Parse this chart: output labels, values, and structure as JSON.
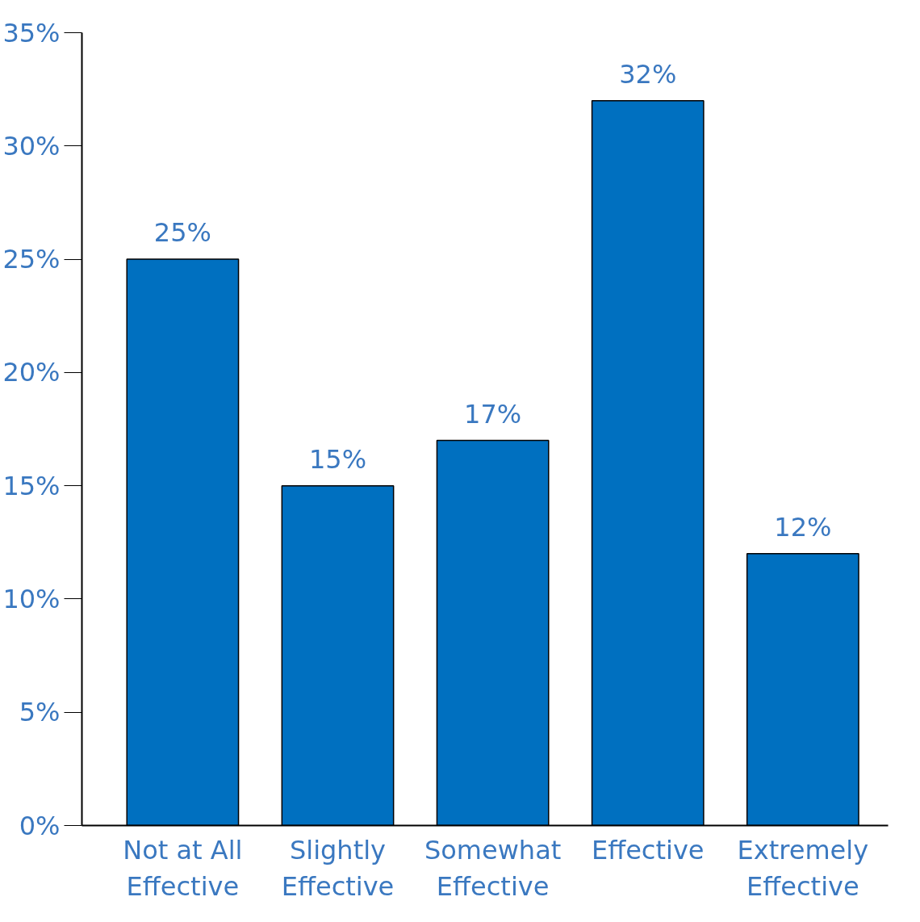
{
  "chart_data": {
    "type": "bar",
    "categories": [
      "Not at All\nEffective",
      "Slightly\nEffective",
      "Somewhat\nEffective",
      "Effective",
      "Extremely\nEffective"
    ],
    "values": [
      25,
      15,
      17,
      32,
      12
    ],
    "value_labels": [
      "25%",
      "15%",
      "17%",
      "32%",
      "12%"
    ],
    "color": "#0070c0",
    "ylim": [
      0,
      35
    ],
    "yticks": [
      {
        "value": 0,
        "label": "0%"
      },
      {
        "value": 5,
        "label": "5%"
      },
      {
        "value": 10,
        "label": "10%"
      },
      {
        "value": 15,
        "label": "15%"
      },
      {
        "value": 20,
        "label": "20%"
      },
      {
        "value": 25,
        "label": "25%"
      },
      {
        "value": 30,
        "label": "30%"
      },
      {
        "value": 35,
        "label": "35%"
      }
    ],
    "grid": false
  }
}
